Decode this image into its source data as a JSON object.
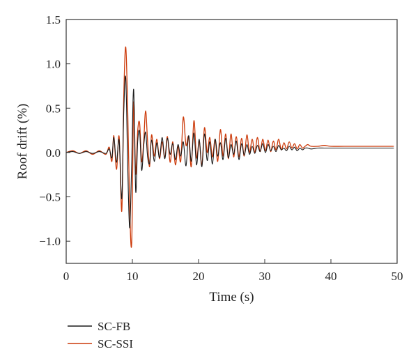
{
  "chart_data": {
    "type": "line",
    "xlabel": "Time (s)",
    "ylabel": "Roof drift (%)",
    "xlim": [
      0,
      50
    ],
    "ylim": [
      -1.25,
      1.5
    ],
    "x_ticks": [
      0,
      10,
      20,
      30,
      40,
      50
    ],
    "x_tick_labels": [
      "0",
      "10",
      "20",
      "30",
      "40",
      "50"
    ],
    "y_ticks": [
      1.5,
      1.0,
      0.5,
      0.0,
      -0.5,
      -1.0
    ],
    "y_tick_labels": [
      "1.5",
      "1.0",
      "0.5",
      "0.0",
      "−0.5",
      "−1.0"
    ],
    "grid": false,
    "legend_position": "bottom-left, below plot",
    "series": [
      {
        "name": "SC-FB",
        "color": "#1a1a1a",
        "x": [
          0,
          1,
          2,
          3,
          4,
          5,
          6,
          6.5,
          6.9,
          7.2,
          7.6,
          8.0,
          8.4,
          8.7,
          9.0,
          9.3,
          9.6,
          9.9,
          10.2,
          10.5,
          10.8,
          11.1,
          11.4,
          11.7,
          12.0,
          12.3,
          12.6,
          12.9,
          13.3,
          13.7,
          14.1,
          14.5,
          14.9,
          15.3,
          15.7,
          16.1,
          16.5,
          16.9,
          17.3,
          17.7,
          18.1,
          18.5,
          18.9,
          19.3,
          19.7,
          20.1,
          20.5,
          20.9,
          21.3,
          21.7,
          22.1,
          22.5,
          22.9,
          23.3,
          23.7,
          24.1,
          24.5,
          24.9,
          25.3,
          25.7,
          26.1,
          26.5,
          26.9,
          27.3,
          27.7,
          28.1,
          28.5,
          28.9,
          29.3,
          29.7,
          30.1,
          30.5,
          30.9,
          31.3,
          31.7,
          32.1,
          32.5,
          32.9,
          33.3,
          33.7,
          34.1,
          34.5,
          34.9,
          35.3,
          35.7,
          36.1,
          36.5,
          37,
          38,
          39,
          40,
          42,
          45,
          47,
          49.5
        ],
        "values": [
          0.0,
          0.01,
          -0.01,
          0.01,
          -0.01,
          0.01,
          -0.01,
          0.04,
          -0.06,
          0.17,
          -0.11,
          0.14,
          -0.52,
          0.45,
          0.84,
          -0.18,
          -0.85,
          -0.1,
          0.71,
          -0.44,
          0.12,
          0.23,
          -0.2,
          0.06,
          0.23,
          -0.05,
          -0.12,
          0.14,
          -0.1,
          0.11,
          -0.06,
          0.17,
          -0.07,
          0.16,
          -0.02,
          0.1,
          -0.08,
          0.09,
          -0.04,
          0.12,
          -0.15,
          0.19,
          -0.1,
          0.22,
          -0.14,
          0.15,
          -0.16,
          0.21,
          -0.09,
          0.12,
          -0.13,
          0.15,
          -0.04,
          0.11,
          -0.08,
          0.16,
          -0.06,
          0.09,
          -0.02,
          0.13,
          -0.08,
          0.1,
          -0.03,
          0.09,
          -0.02,
          0.07,
          -0.01,
          0.08,
          0.01,
          0.1,
          0.0,
          0.09,
          0.02,
          0.07,
          0.01,
          0.08,
          0.03,
          0.05,
          0.02,
          0.07,
          0.03,
          0.06,
          0.02,
          0.05,
          0.03,
          0.05,
          0.05,
          0.04,
          0.05,
          0.05,
          0.05,
          0.05,
          0.05,
          0.05,
          0.05
        ]
      },
      {
        "name": "SC-SSI",
        "color": "#cc3a0a",
        "x": [
          0,
          1,
          2,
          3,
          4,
          5,
          6,
          6.5,
          6.9,
          7.2,
          7.6,
          8.0,
          8.4,
          8.7,
          9.0,
          9.3,
          9.6,
          9.9,
          10.2,
          10.5,
          10.8,
          11.1,
          11.4,
          11.7,
          12.0,
          12.3,
          12.6,
          12.9,
          13.3,
          13.7,
          14.1,
          14.5,
          14.9,
          15.3,
          15.7,
          16.1,
          16.5,
          16.9,
          17.3,
          17.7,
          18.1,
          18.5,
          18.9,
          19.3,
          19.7,
          20.1,
          20.5,
          20.9,
          21.3,
          21.7,
          22.1,
          22.5,
          22.9,
          23.3,
          23.7,
          24.1,
          24.5,
          24.9,
          25.3,
          25.7,
          26.1,
          26.5,
          26.9,
          27.3,
          27.7,
          28.1,
          28.5,
          28.9,
          29.3,
          29.7,
          30.1,
          30.5,
          30.9,
          31.3,
          31.7,
          32.1,
          32.5,
          32.9,
          33.3,
          33.7,
          34.1,
          34.5,
          34.9,
          35.3,
          35.7,
          36.1,
          36.5,
          37,
          38,
          39,
          40,
          42,
          45,
          47,
          49.5
        ],
        "values": [
          0.0,
          0.02,
          -0.01,
          0.02,
          -0.02,
          0.02,
          -0.02,
          0.06,
          -0.1,
          0.19,
          -0.19,
          0.18,
          -0.66,
          0.62,
          1.19,
          0.45,
          -0.63,
          -1.01,
          0.56,
          -0.24,
          0.24,
          0.33,
          -0.1,
          0.11,
          0.47,
          0.12,
          -0.16,
          0.2,
          -0.04,
          0.15,
          -0.07,
          0.12,
          -0.06,
          0.18,
          -0.11,
          0.12,
          -0.14,
          0.07,
          -0.1,
          0.4,
          0.08,
          0.18,
          -0.16,
          0.36,
          -0.06,
          0.13,
          -0.15,
          0.28,
          0.0,
          0.17,
          -0.05,
          0.15,
          -0.1,
          0.26,
          -0.04,
          0.21,
          -0.07,
          0.21,
          -0.05,
          0.18,
          -0.05,
          0.16,
          -0.04,
          0.2,
          0.0,
          0.15,
          0.0,
          0.17,
          0.01,
          0.15,
          0.02,
          0.14,
          0.01,
          0.13,
          0.03,
          0.15,
          0.03,
          0.11,
          0.04,
          0.12,
          0.05,
          0.1,
          0.04,
          0.09,
          0.05,
          0.07,
          0.09,
          0.07,
          0.07,
          0.08,
          0.07,
          0.07,
          0.07,
          0.07,
          0.07
        ]
      }
    ]
  }
}
